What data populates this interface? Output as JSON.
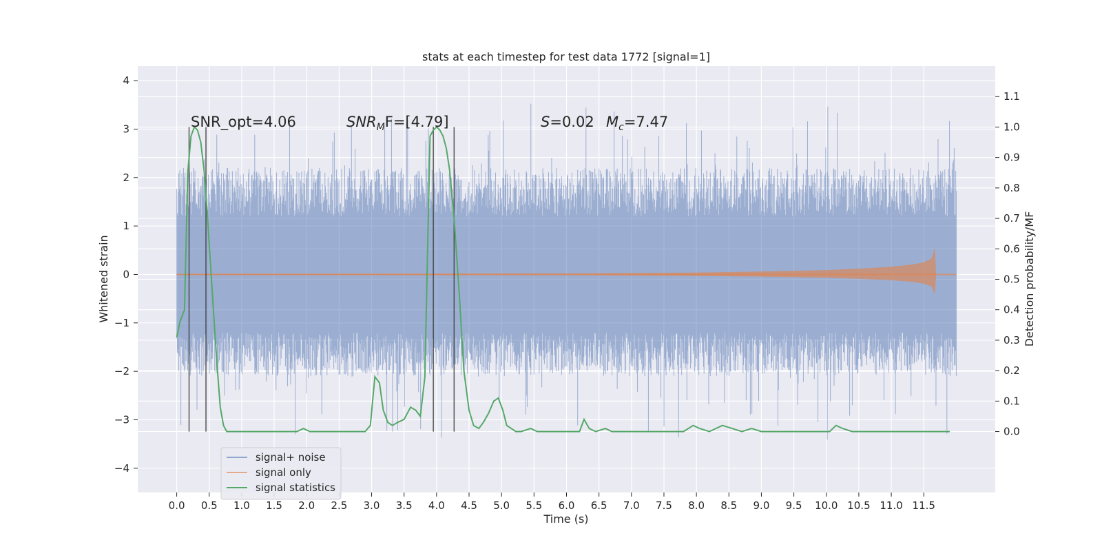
{
  "chart_data": {
    "type": "line",
    "title": "stats at each timestep for test data 1772 [signal=1]",
    "xlabel": "Time (s)",
    "ylabel_left": "Whitened strain",
    "ylabel_right": "Detection probability/MF",
    "xlim": [
      -0.6,
      12.6
    ],
    "ylim_left": [
      -4.5,
      4.3
    ],
    "ylim_right": [
      -0.2,
      1.2
    ],
    "x_ticks": [
      "0.0",
      "0.5",
      "1.0",
      "1.5",
      "2.0",
      "2.5",
      "3.0",
      "3.5",
      "4.0",
      "4.5",
      "5.0",
      "5.5",
      "6.0",
      "6.5",
      "7.0",
      "7.5",
      "8.0",
      "8.5",
      "9.0",
      "9.5",
      "10.0",
      "10.5",
      "11.0",
      "11.5"
    ],
    "y_ticks_left": [
      "4",
      "3",
      "2",
      "1",
      "0",
      "−1",
      "−2",
      "−3",
      "−4"
    ],
    "y_ticks_right": [
      "1.1",
      "1.0",
      "0.9",
      "0.8",
      "0.7",
      "0.6",
      "0.5",
      "0.4",
      "0.3",
      "0.2",
      "0.1",
      "0.0"
    ],
    "grid": true,
    "legend_position": "lower-left",
    "annotations": {
      "snr_opt": "SNR_opt=4.06",
      "snr_mf_main": "SNR",
      "snr_mf_sub": "M",
      "snr_mf_rest": "F=[4.79]",
      "s_italic": "S",
      "s_value": "=0.02",
      "mc_italic": "M",
      "mc_sub": "c",
      "mc_value": "=7.47"
    },
    "vertical_markers_s": [
      0.19,
      0.45,
      3.95,
      4.27
    ],
    "series": [
      {
        "name": "signal+ noise",
        "axis": "left",
        "color": "#4c72b0",
        "description_range": [
          -1.9,
          2.0
        ],
        "x_range": [
          0.0,
          12.0
        ]
      },
      {
        "name": "signal only",
        "axis": "left",
        "color": "#dd8452",
        "envelope_x": [
          0.0,
          6.0,
          8.0,
          9.0,
          10.0,
          10.5,
          11.0,
          11.3,
          11.5,
          11.62,
          11.67,
          11.69
        ],
        "envelope_y": [
          0.01,
          0.02,
          0.04,
          0.06,
          0.09,
          0.12,
          0.16,
          0.2,
          0.25,
          0.33,
          0.55,
          0.0
        ]
      },
      {
        "name": "signal statistics",
        "axis": "right",
        "color": "#55a868",
        "x": [
          0.0,
          0.05,
          0.12,
          0.17,
          0.22,
          0.27,
          0.32,
          0.37,
          0.42,
          0.47,
          0.52,
          0.57,
          0.62,
          0.67,
          0.72,
          0.77,
          0.82,
          0.9,
          1.0,
          1.5,
          1.85,
          1.95,
          2.05,
          2.2,
          2.5,
          2.9,
          2.98,
          3.05,
          3.12,
          3.18,
          3.25,
          3.32,
          3.4,
          3.5,
          3.6,
          3.68,
          3.75,
          3.82,
          3.9,
          3.95,
          4.0,
          4.05,
          4.1,
          4.15,
          4.2,
          4.27,
          4.35,
          4.42,
          4.5,
          4.57,
          4.65,
          4.72,
          4.8,
          4.88,
          4.95,
          5.02,
          5.08,
          5.15,
          5.22,
          5.3,
          5.45,
          5.55,
          5.65,
          5.8,
          6.0,
          6.1,
          6.2,
          6.27,
          6.35,
          6.45,
          6.6,
          6.7,
          6.8,
          7.0,
          7.2,
          7.5,
          7.8,
          7.95,
          8.05,
          8.2,
          8.3,
          8.4,
          8.55,
          8.7,
          8.85,
          9.0,
          9.3,
          10.0,
          10.05,
          10.15,
          10.25,
          10.4,
          10.6,
          11.0,
          11.5,
          11.9
        ],
        "y": [
          0.31,
          0.36,
          0.4,
          0.85,
          0.97,
          1.0,
          0.99,
          0.95,
          0.86,
          0.72,
          0.55,
          0.38,
          0.22,
          0.08,
          0.02,
          0.0,
          0.0,
          0.0,
          0.0,
          0.0,
          0.0,
          0.01,
          0.0,
          0.0,
          0.0,
          0.0,
          0.02,
          0.18,
          0.16,
          0.07,
          0.03,
          0.02,
          0.03,
          0.04,
          0.08,
          0.07,
          0.05,
          0.18,
          0.97,
          0.99,
          1.0,
          0.99,
          0.97,
          0.93,
          0.86,
          0.7,
          0.45,
          0.2,
          0.07,
          0.02,
          0.01,
          0.03,
          0.06,
          0.1,
          0.11,
          0.07,
          0.02,
          0.01,
          0.0,
          0.0,
          0.01,
          0.0,
          0.0,
          0.0,
          0.0,
          0.0,
          0.0,
          0.04,
          0.01,
          0.0,
          0.01,
          0.0,
          0.0,
          0.0,
          0.0,
          0.0,
          0.0,
          0.02,
          0.01,
          0.0,
          0.01,
          0.02,
          0.01,
          0.0,
          0.01,
          0.0,
          0.0,
          0.0,
          0.0,
          0.02,
          0.01,
          0.0,
          0.0,
          0.0,
          0.0,
          0.0
        ]
      }
    ]
  }
}
